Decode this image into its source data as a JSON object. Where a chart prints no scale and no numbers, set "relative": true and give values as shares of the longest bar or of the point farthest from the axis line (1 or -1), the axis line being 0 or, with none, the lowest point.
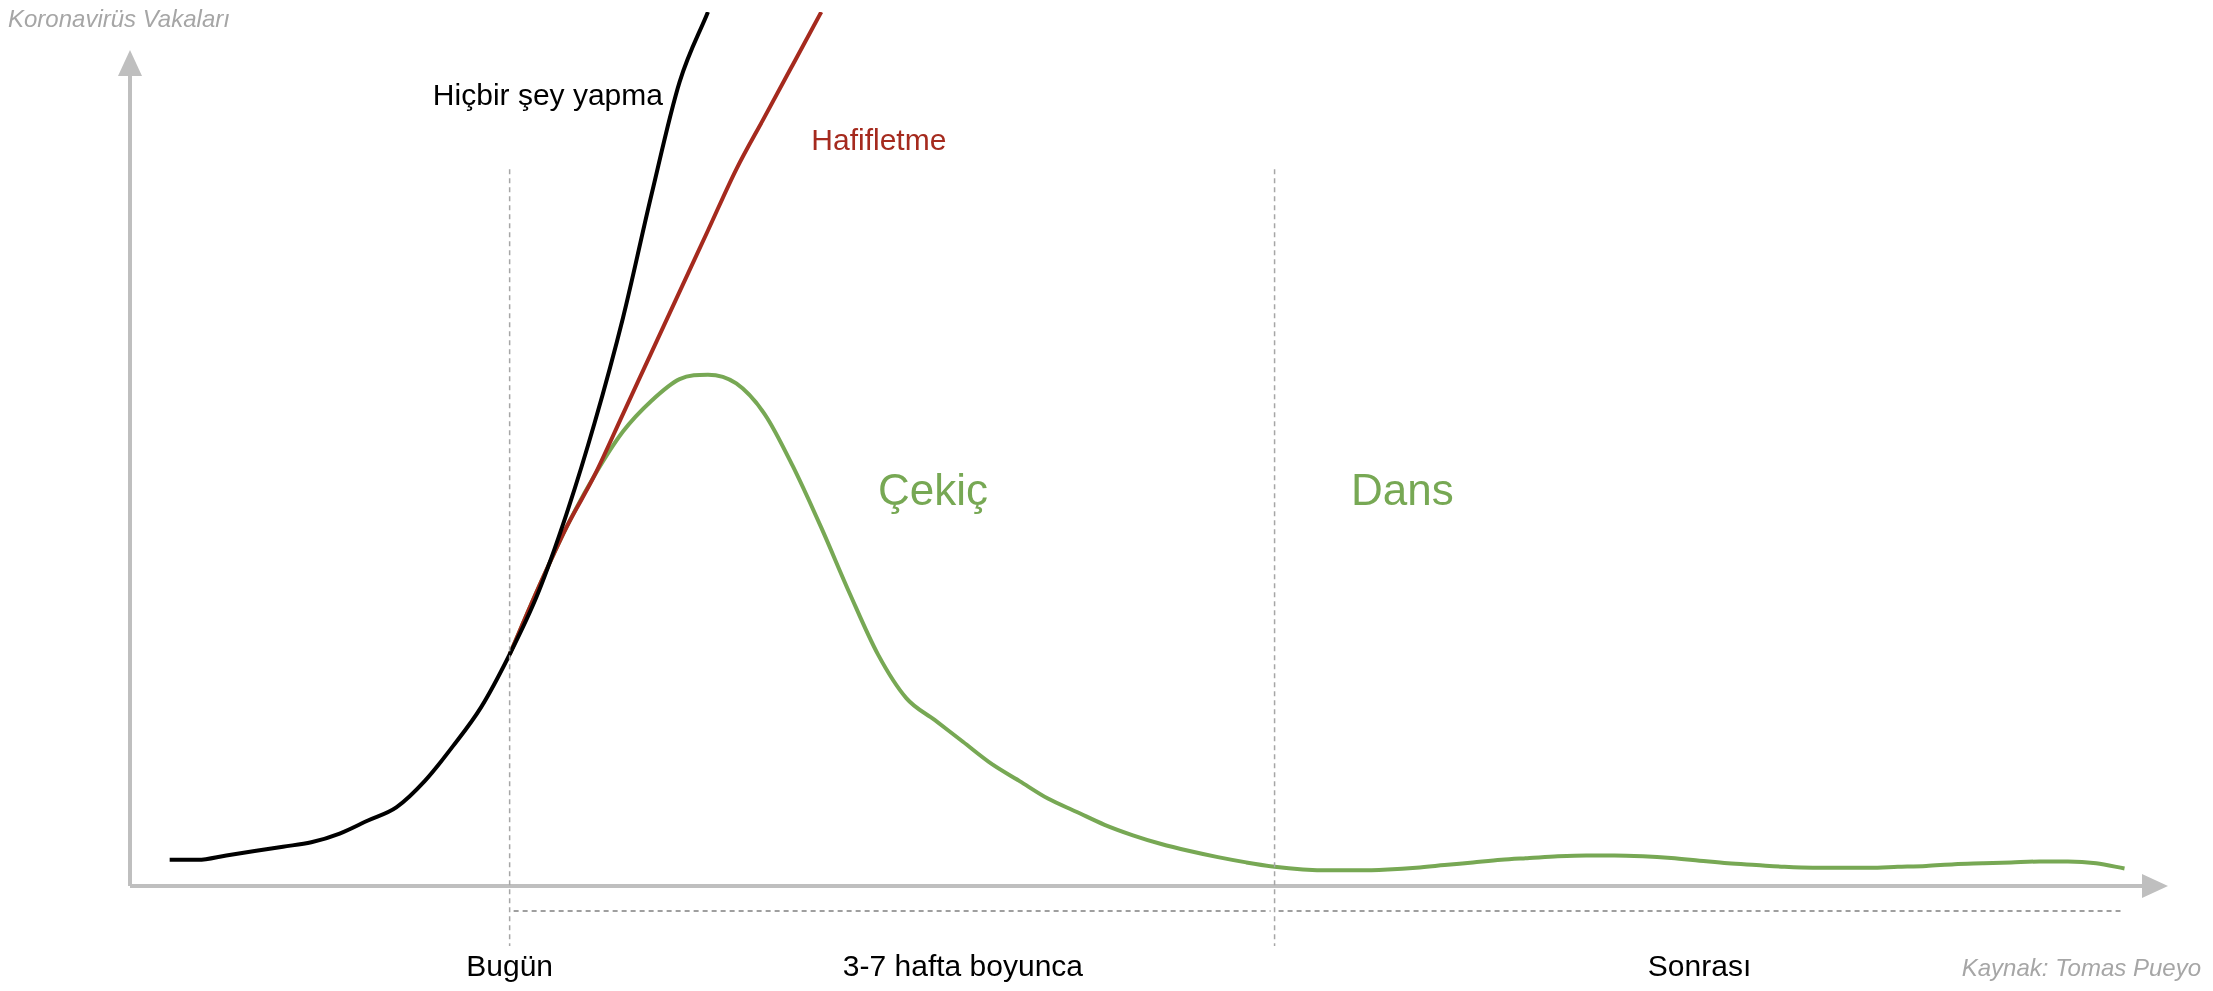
{
  "chart_data": {
    "type": "line",
    "relative": true,
    "ylabel": "Koronavirüs Vakaları",
    "categories": [
      null,
      null,
      null,
      null,
      null,
      null,
      null,
      null,
      null,
      null,
      null,
      null,
      "Bugün",
      null,
      null,
      null,
      null,
      null,
      null,
      null,
      null,
      null,
      null,
      null,
      null,
      null,
      null,
      null,
      "3-7 hafta boyunca",
      null,
      null,
      null,
      null,
      null,
      null,
      null,
      null,
      null,
      null,
      null,
      null,
      null,
      null,
      null,
      null,
      null,
      null,
      null,
      null,
      null,
      null,
      null,
      null,
      null,
      "Sonrası",
      null,
      null,
      null,
      null,
      null,
      null,
      null,
      null,
      null,
      null,
      null,
      null,
      null,
      null,
      null
    ],
    "series": [
      {
        "name": "Hiçbir şey yapma",
        "color": "#000000",
        "values": [
          0.03,
          0.03,
          0.035,
          0.04,
          0.045,
          0.05,
          0.06,
          0.075,
          0.09,
          0.12,
          0.16,
          0.205,
          0.265,
          0.335,
          0.425,
          0.53,
          0.65,
          0.79,
          0.92,
          1.0,
          null,
          null,
          null,
          null,
          null,
          null,
          null,
          null,
          null,
          null,
          null,
          null,
          null,
          null,
          null,
          null,
          null,
          null,
          null,
          null,
          null,
          null,
          null,
          null,
          null,
          null,
          null,
          null,
          null,
          null,
          null,
          null,
          null,
          null,
          null,
          null,
          null,
          null,
          null,
          null,
          null,
          null,
          null,
          null,
          null,
          null,
          null,
          null,
          null,
          null
        ]
      },
      {
        "name": "Hafifletme",
        "color": "#a52a1e",
        "values": [
          null,
          null,
          null,
          null,
          null,
          null,
          null,
          null,
          null,
          null,
          null,
          null,
          0.265,
          0.34,
          0.41,
          0.47,
          0.54,
          0.61,
          0.68,
          0.75,
          0.82,
          0.88,
          0.94,
          1.0,
          null,
          null,
          null,
          null,
          null,
          null,
          null,
          null,
          null,
          null,
          null,
          null,
          null,
          null,
          null,
          null,
          null,
          null,
          null,
          null,
          null,
          null,
          null,
          null,
          null,
          null,
          null,
          null,
          null,
          null,
          null,
          null,
          null,
          null,
          null,
          null,
          null,
          null,
          null,
          null,
          null,
          null,
          null,
          null,
          null,
          null
        ]
      },
      {
        "color": "#77a854",
        "values": [
          null,
          null,
          null,
          null,
          null,
          null,
          null,
          null,
          null,
          null,
          null,
          null,
          0.265,
          0.34,
          0.41,
          0.47,
          0.52,
          0.555,
          0.58,
          0.585,
          0.575,
          0.54,
          0.48,
          0.41,
          0.335,
          0.265,
          0.215,
          0.19,
          0.165,
          0.14,
          0.12,
          0.1,
          0.085,
          0.07,
          0.058,
          0.048,
          0.04,
          0.033,
          0.027,
          0.022,
          0.019,
          0.018,
          0.018,
          0.019,
          0.021,
          0.024,
          0.027,
          0.03,
          0.032,
          0.034,
          0.035,
          0.035,
          0.034,
          0.032,
          0.029,
          0.026,
          0.024,
          0.022,
          0.021,
          0.021,
          0.021,
          0.022,
          0.023,
          0.025,
          0.026,
          0.027,
          0.028,
          0.028,
          0.026,
          0.02
        ]
      }
    ],
    "annotations": [
      "Çekiç",
      "Dans",
      "Kaynak: Tomas Pueyo"
    ],
    "line_style": "solid"
  }
}
